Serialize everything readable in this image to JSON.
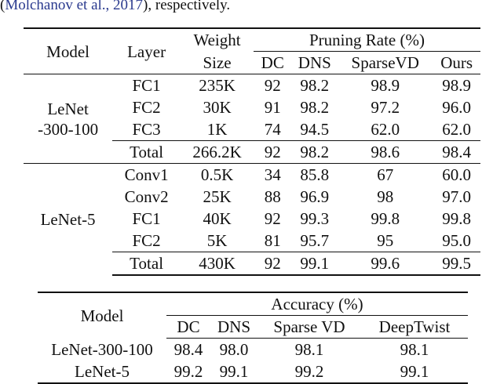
{
  "intro": {
    "prefix": "(",
    "citation": "Molchanov et al., 2017",
    "suffix": "), respectively."
  },
  "pruning_table": {
    "headers": {
      "model": "Model",
      "layer": "Layer",
      "weight_size_line1": "Weight",
      "weight_size_line2": "Size",
      "group": "Pruning Rate (%)",
      "methods": [
        "DC",
        "DNS",
        "SparseVD",
        "Ours"
      ]
    },
    "groups": [
      {
        "model_line1": "LeNet",
        "model_line2": "-300-100",
        "rows": [
          {
            "layer": "FC1",
            "size": "235K",
            "values": [
              "92",
              "98.2",
              "98.9",
              "98.9"
            ]
          },
          {
            "layer": "FC2",
            "size": "30K",
            "values": [
              "91",
              "98.2",
              "97.2",
              "96.0"
            ]
          },
          {
            "layer": "FC3",
            "size": "1K",
            "values": [
              "74",
              "94.5",
              "62.0",
              "62.0"
            ]
          },
          {
            "layer": "Total",
            "size": "266.2K",
            "values": [
              "92",
              "98.2",
              "98.6",
              "98.4"
            ]
          }
        ]
      },
      {
        "model_line1": "LeNet-5",
        "rows": [
          {
            "layer": "Conv1",
            "size": "0.5K",
            "values": [
              "34",
              "85.8",
              "67",
              "60.0"
            ]
          },
          {
            "layer": "Conv2",
            "size": "25K",
            "values": [
              "88",
              "96.9",
              "98",
              "97.0"
            ]
          },
          {
            "layer": "FC1",
            "size": "40K",
            "values": [
              "92",
              "99.3",
              "99.8",
              "99.8"
            ]
          },
          {
            "layer": "FC2",
            "size": "5K",
            "values": [
              "81",
              "95.7",
              "95",
              "95.0"
            ]
          },
          {
            "layer": "Total",
            "size": "430K",
            "values": [
              "92",
              "99.1",
              "99.6",
              "99.5"
            ]
          }
        ]
      }
    ]
  },
  "accuracy_table": {
    "headers": {
      "model": "Model",
      "group": "Accuracy (%)",
      "methods": [
        "DC",
        "DNS",
        "Sparse VD",
        "DeepTwist"
      ]
    },
    "rows": [
      {
        "model": "LeNet-300-100",
        "values": [
          "98.4",
          "98.0",
          "98.1",
          "98.1"
        ]
      },
      {
        "model": "LeNet-5",
        "values": [
          "99.2",
          "99.1",
          "99.2",
          "99.1"
        ]
      }
    ]
  }
}
